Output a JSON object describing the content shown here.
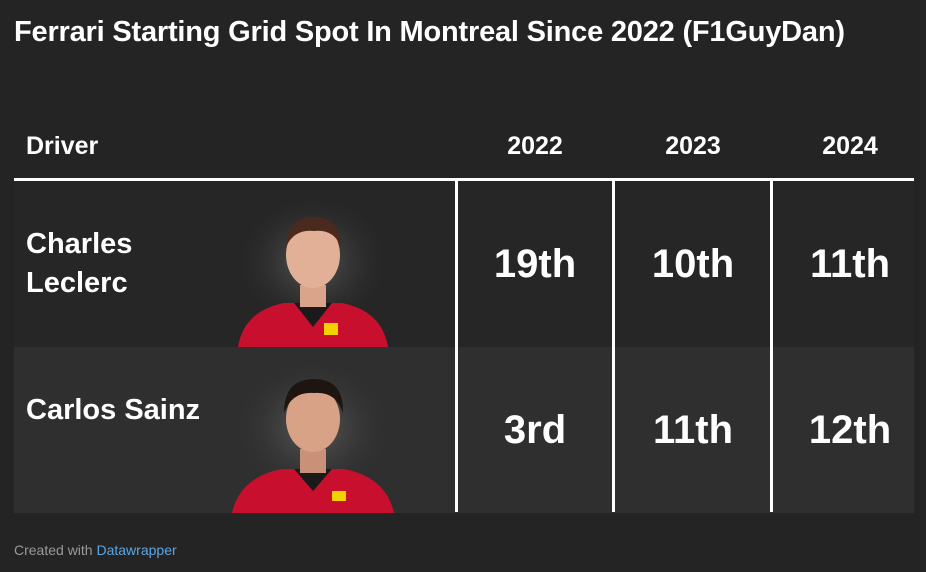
{
  "title": "Ferrari Starting Grid Spot In Montreal Since 2022 (F1GuyDan)",
  "chart_data": {
    "type": "table",
    "columns": [
      "Driver",
      "2022",
      "2023",
      "2024"
    ],
    "rows": [
      {
        "driver": "Charles Leclerc",
        "values": [
          "19th",
          "10th",
          "11th"
        ]
      },
      {
        "driver": "Carlos Sainz",
        "values": [
          "3rd",
          "11th",
          "12th"
        ]
      }
    ]
  },
  "footer": {
    "prefix": "Created with",
    "link": "Datawrapper"
  },
  "colors": {
    "background": "#242424",
    "row_alt": "#2f2f2f",
    "text": "#ffffff",
    "ferrari_red": "#c8102e",
    "link": "#5aa6e8"
  }
}
